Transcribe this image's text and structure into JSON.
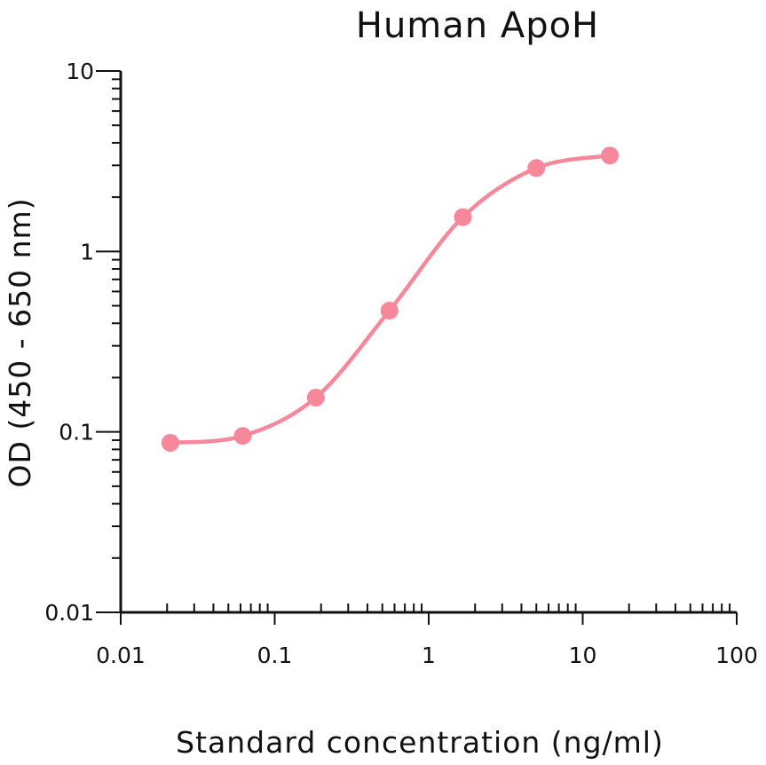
{
  "chart_data": {
    "type": "line",
    "title": "Human ApoH",
    "xlabel": "Standard concentration (ng/ml)",
    "ylabel": "OD (450 - 650 nm)",
    "x_scale": "log",
    "y_scale": "log",
    "xlim": [
      0.01,
      100
    ],
    "ylim": [
      0.01,
      10
    ],
    "x_ticks": [
      "0.01",
      "0.1",
      "1",
      "10",
      "100"
    ],
    "y_ticks": [
      "10",
      "1",
      "0.1",
      "0.01"
    ],
    "grid": false,
    "series": [
      {
        "x": [
          0.021,
          0.062,
          0.185,
          0.556,
          1.667,
          5.0,
          15.0
        ],
        "y": [
          0.087,
          0.095,
          0.155,
          0.47,
          1.55,
          2.9,
          3.4
        ],
        "color": "#f7879a"
      }
    ]
  }
}
